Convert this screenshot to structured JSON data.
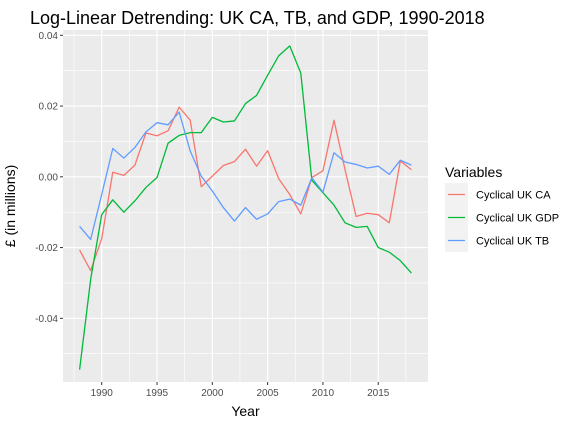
{
  "chart_data": {
    "type": "line",
    "title": "Log-Linear Detrending: UK CA, TB, and GDP, 1990-2018",
    "xlabel": "Year",
    "ylabel": "£ (in millions)",
    "xlim": [
      1986.5,
      2019.5
    ],
    "ylim": [
      -0.058,
      0.0415
    ],
    "x_ticks": [
      1990,
      1995,
      2000,
      2005,
      2010,
      2015
    ],
    "x_tick_labels": [
      "1990",
      "1995",
      "2000",
      "2005",
      "2010",
      "2015"
    ],
    "y_ticks": [
      -0.04,
      -0.02,
      0.0,
      0.02,
      0.04
    ],
    "y_tick_labels": [
      "-0.04",
      "-0.02",
      "0.00",
      "0.02",
      "0.04"
    ],
    "grid": true,
    "legend": {
      "title": "Variables",
      "position": "right"
    },
    "x": [
      1988,
      1989,
      1990,
      1991,
      1992,
      1993,
      1994,
      1995,
      1996,
      1997,
      1998,
      1999,
      2000,
      2001,
      2002,
      2003,
      2004,
      2005,
      2006,
      2007,
      2008,
      2009,
      2010,
      2011,
      2012,
      2013,
      2014,
      2015,
      2016,
      2017,
      2018
    ],
    "series": [
      {
        "name": "Cyclical UK CA",
        "color": "#F8766D",
        "values": [
          -0.0207,
          -0.0265,
          -0.0175,
          0.0013,
          0.0004,
          0.0033,
          0.0124,
          0.0116,
          0.013,
          0.0197,
          0.016,
          -0.0028,
          0.0002,
          0.0032,
          0.0043,
          0.0078,
          0.003,
          0.0074,
          -0.0005,
          -0.005,
          -0.0105,
          -0.0002,
          0.0017,
          0.016,
          0.002,
          -0.0112,
          -0.0103,
          -0.0107,
          -0.013,
          0.0045,
          0.002
        ]
      },
      {
        "name": "Cyclical UK GDP",
        "color": "#00BA38",
        "values": [
          -0.0545,
          -0.029,
          -0.0107,
          -0.0065,
          -0.01,
          -0.0068,
          -0.003,
          -0.0002,
          0.0095,
          0.0117,
          0.0125,
          0.0125,
          0.0168,
          0.0155,
          0.0158,
          0.0207,
          0.023,
          0.0287,
          0.0342,
          0.037,
          0.0293,
          -0.001,
          -0.0045,
          -0.008,
          -0.013,
          -0.0143,
          -0.014,
          -0.02,
          -0.0213,
          -0.0237,
          -0.0272
        ]
      },
      {
        "name": "Cyclical UK TB",
        "color": "#619CFF",
        "values": [
          -0.014,
          -0.0177,
          -0.005,
          0.008,
          0.0053,
          0.0083,
          0.0127,
          0.0153,
          0.0147,
          0.0183,
          0.0073,
          0.0002,
          -0.004,
          -0.0087,
          -0.0125,
          -0.0087,
          -0.012,
          -0.0105,
          -0.007,
          -0.0063,
          -0.008,
          -0.0003,
          -0.0043,
          0.0068,
          0.0042,
          0.0035,
          0.0025,
          0.003,
          0.0007,
          0.0047,
          0.0033
        ]
      }
    ]
  }
}
